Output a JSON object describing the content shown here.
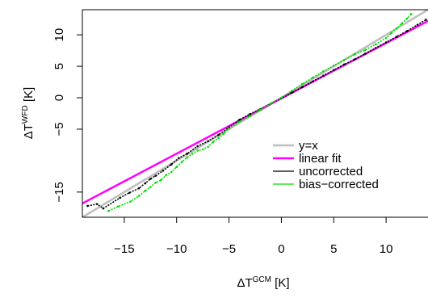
{
  "chart_data": {
    "type": "scatter",
    "xlabel": "ΔT",
    "xlabel_sup": "GCM",
    "xlabel_unit": " [K]",
    "ylabel": "ΔT",
    "ylabel_sup": "WFD",
    "ylabel_unit": " [K]",
    "xlim": [
      -19,
      14
    ],
    "ylim": [
      -19,
      14
    ],
    "xticks": [
      -15,
      -10,
      -5,
      0,
      5,
      10
    ],
    "xtick_labels": [
      "−15",
      "−10",
      "−5",
      "0",
      "5",
      "10"
    ],
    "yticks": [
      -15,
      -5,
      0,
      5,
      10
    ],
    "ytick_labels": [
      "−15",
      "−5",
      "0",
      "5",
      "10"
    ],
    "grid": false,
    "legend_position": "bottom-right",
    "legend": [
      {
        "label": "y=x",
        "color": "#bebebe",
        "style": "line"
      },
      {
        "label": "linear fit",
        "color": "#ff00ff",
        "style": "line"
      },
      {
        "label": "uncorrected",
        "color": "#000000",
        "style": "points"
      },
      {
        "label": "bias−corrected",
        "color": "#00dd00",
        "style": "points"
      }
    ],
    "lines": [
      {
        "name": "y=x",
        "x": [
          -19,
          14
        ],
        "y": [
          -19,
          14
        ],
        "color": "#bebebe"
      },
      {
        "name": "linear fit",
        "x": [
          -19,
          14
        ],
        "y": [
          -16.8,
          12.2
        ],
        "color": "#ff00ff"
      }
    ],
    "series": [
      {
        "name": "uncorrected",
        "color": "#000000",
        "points": [
          [
            -18.5,
            -17.2
          ],
          [
            -17.6,
            -16.9
          ],
          [
            -17.0,
            -17.6
          ],
          [
            -15.4,
            -15.9
          ],
          [
            -14.5,
            -15.1
          ],
          [
            -13.6,
            -14.4
          ],
          [
            -13.0,
            -13.6
          ],
          [
            -12.5,
            -12.9
          ],
          [
            -12.0,
            -12.4
          ],
          [
            -11.3,
            -11.6
          ],
          [
            -10.5,
            -10.6
          ],
          [
            -9.8,
            -9.6
          ],
          [
            -9.0,
            -8.9
          ],
          [
            -8.0,
            -7.7
          ],
          [
            -7.0,
            -6.9
          ],
          [
            -6.0,
            -5.9
          ],
          [
            -5.0,
            -4.7
          ],
          [
            -4.0,
            -3.5
          ],
          [
            -3.0,
            -2.6
          ],
          [
            -2.0,
            -1.8
          ],
          [
            -1.0,
            -0.9
          ],
          [
            0.0,
            -0.1
          ],
          [
            1.0,
            0.8
          ],
          [
            2.0,
            1.7
          ],
          [
            3.0,
            2.6
          ],
          [
            4.0,
            3.5
          ],
          [
            5.0,
            4.4
          ],
          [
            6.0,
            5.3
          ],
          [
            7.0,
            6.1
          ],
          [
            8.0,
            7.0
          ],
          [
            9.0,
            7.9
          ],
          [
            10.0,
            8.8
          ],
          [
            11.0,
            9.7
          ],
          [
            12.0,
            10.6
          ],
          [
            13.0,
            11.6
          ],
          [
            13.8,
            12.4
          ]
        ]
      },
      {
        "name": "bias−corrected",
        "color": "#00dd00",
        "points": [
          [
            -16.5,
            -18.0
          ],
          [
            -15.6,
            -17.3
          ],
          [
            -14.4,
            -16.5
          ],
          [
            -13.6,
            -15.6
          ],
          [
            -13.0,
            -14.8
          ],
          [
            -12.5,
            -14.2
          ],
          [
            -12.0,
            -13.5
          ],
          [
            -11.5,
            -13.1
          ],
          [
            -11.0,
            -12.3
          ],
          [
            -10.5,
            -11.8
          ],
          [
            -10.0,
            -11.0
          ],
          [
            -9.5,
            -10.2
          ],
          [
            -9.0,
            -9.5
          ],
          [
            -8.5,
            -8.9
          ],
          [
            -8.0,
            -8.4
          ],
          [
            -7.5,
            -8.2
          ],
          [
            -7.0,
            -7.8
          ],
          [
            -6.5,
            -7.0
          ],
          [
            -6.0,
            -6.4
          ],
          [
            -5.5,
            -5.7
          ],
          [
            -5.0,
            -4.9
          ],
          [
            -4.0,
            -3.8
          ],
          [
            -3.0,
            -2.9
          ],
          [
            -2.0,
            -1.9
          ],
          [
            -1.0,
            -0.9
          ],
          [
            0.0,
            0.0
          ],
          [
            1.0,
            1.1
          ],
          [
            2.0,
            2.2
          ],
          [
            3.0,
            3.2
          ],
          [
            4.0,
            4.2
          ],
          [
            5.0,
            5.1
          ],
          [
            6.0,
            6.0
          ],
          [
            7.0,
            6.9
          ],
          [
            8.0,
            7.6
          ],
          [
            9.0,
            8.5
          ],
          [
            10.0,
            9.5
          ],
          [
            10.5,
            10.3
          ],
          [
            11.0,
            11.0
          ],
          [
            11.5,
            11.8
          ],
          [
            12.0,
            12.6
          ],
          [
            12.4,
            13.3
          ]
        ]
      }
    ]
  }
}
